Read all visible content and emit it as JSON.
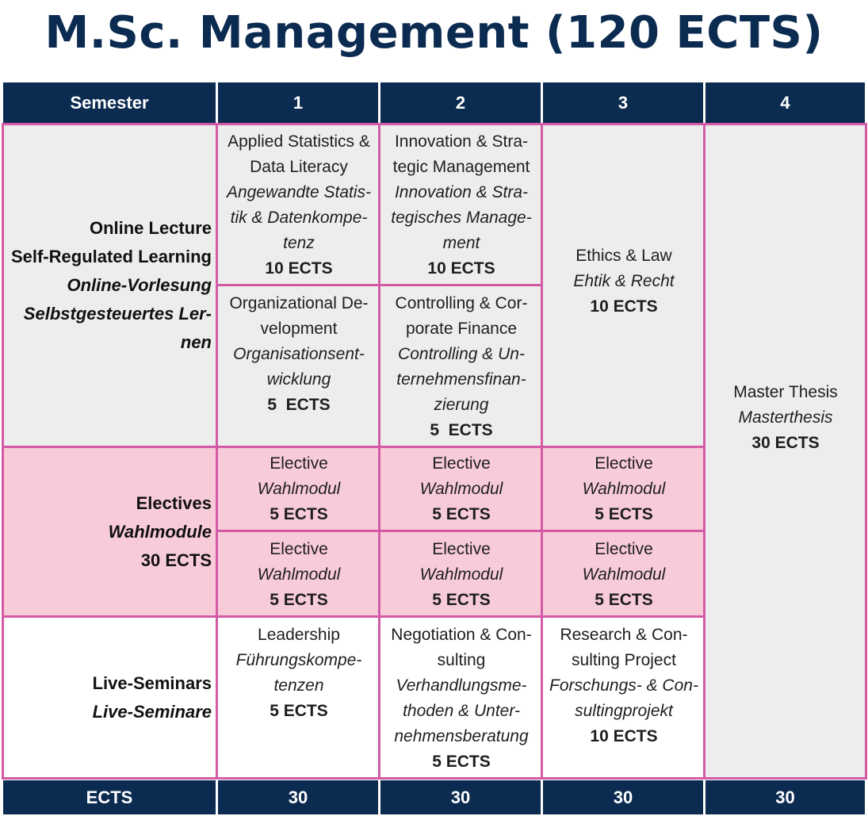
{
  "title": "M.Sc. Management (120 ECTS)",
  "header": {
    "semester_label": "Semester",
    "semesters": [
      "1",
      "2",
      "3",
      "4"
    ]
  },
  "rows": {
    "online": {
      "label_lines": [
        "Online Lecture",
        "Self-Regulated Learning"
      ],
      "label_italic_lines": [
        "Online-Vorlesung",
        "Selbstgesteuertes Ler-",
        "nen"
      ]
    },
    "electives": {
      "label": "Electives",
      "label_italic": "Wahlmodule",
      "label_ects": "30 ECTS"
    },
    "live": {
      "label": "Live-Seminars",
      "label_italic": "Live-Seminare"
    }
  },
  "modules": {
    "applied_statistics": {
      "en": [
        "Applied Statistics &",
        "Data Literacy"
      ],
      "de": [
        "Angewandte Statis-",
        "tik & Datenkompe-",
        "tenz"
      ],
      "ects": "10 ECTS"
    },
    "innovation": {
      "en": [
        "Innovation & Stra-",
        "tegic Management"
      ],
      "de": [
        "Innovation & Stra-",
        "tegisches Manage-",
        "ment"
      ],
      "ects": "10 ECTS"
    },
    "organizational": {
      "en": [
        "Organizational De-",
        "velopment"
      ],
      "de": [
        "Organisationsent-",
        "wicklung"
      ],
      "ects": "5  ECTS"
    },
    "controlling": {
      "en": [
        "Controlling & Cor-",
        "porate Finance"
      ],
      "de": [
        "Controlling & Un-",
        "ternehmensfinan-",
        "zierung"
      ],
      "ects": "5  ECTS"
    },
    "ethics": {
      "en": [
        "Ethics & Law"
      ],
      "de": [
        "Ehtik & Recht"
      ],
      "ects": "10 ECTS"
    },
    "thesis": {
      "en": [
        "Master Thesis"
      ],
      "de": [
        "Masterthesis"
      ],
      "ects": "30 ECTS"
    },
    "elective": {
      "en": "Elective",
      "de": "Wahlmodul",
      "ects": "5 ECTS"
    },
    "leadership": {
      "en": [
        "Leadership"
      ],
      "de": [
        "Führungskompe-",
        "tenzen"
      ],
      "ects": "5 ECTS"
    },
    "negotiation": {
      "en": [
        "Negotiation & Con-",
        "sulting"
      ],
      "de": [
        "Verhandlungsme-",
        "thoden & Unter-",
        "nehmensberatung"
      ],
      "ects": "5 ECTS"
    },
    "research": {
      "en": [
        "Research & Con-",
        "sulting Project"
      ],
      "de": [
        "Forschungs- & Con-",
        "sultingprojekt"
      ],
      "ects": "10 ECTS"
    }
  },
  "footer": {
    "label": "ECTS",
    "values": [
      "30",
      "30",
      "30",
      "30"
    ]
  },
  "colors": {
    "navy": "#0c2b51",
    "pink_fill": "#f8cbd9",
    "pink_border": "#d35ba6",
    "grey_fill": "#ededee"
  }
}
